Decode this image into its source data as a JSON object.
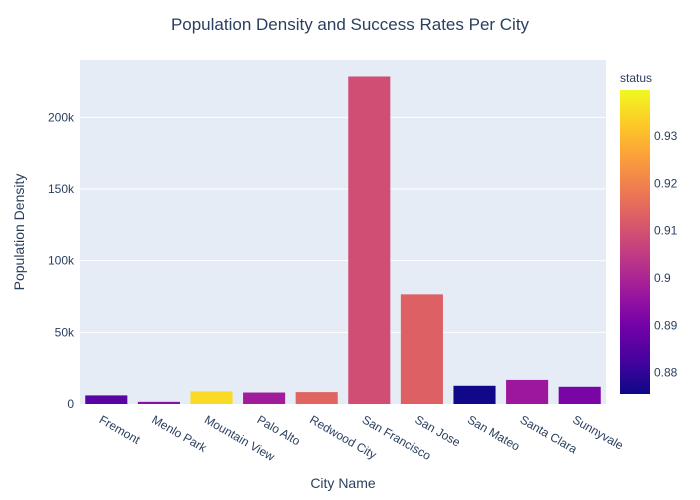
{
  "chart_data": {
    "type": "bar",
    "title": "Population Density and Success Rates Per City",
    "xlabel": "City Name",
    "ylabel": "Population Density",
    "ylim": [
      0,
      240000
    ],
    "yticks": [
      0,
      50000,
      100000,
      150000,
      200000
    ],
    "ytick_labels": [
      "0",
      "50k",
      "100k",
      "150k",
      "200k"
    ],
    "categories": [
      "Fremont",
      "Menlo Park",
      "Mountain View",
      "Palo Alto",
      "Redwood City",
      "San Francisco",
      "San Jose",
      "San Mateo",
      "Santa Clara",
      "Sunnyvale"
    ],
    "values": [
      6000,
      1500,
      8800,
      8000,
      8300,
      228500,
      76500,
      12700,
      16800,
      12000
    ],
    "status": [
      0.886,
      0.894,
      0.935,
      0.898,
      0.914,
      0.909,
      0.913,
      0.876,
      0.897,
      0.891
    ],
    "grid": true,
    "colorbar": {
      "title": "status",
      "range": [
        0.8755,
        0.9397
      ],
      "ticks": [
        0.88,
        0.89,
        0.9,
        0.91,
        0.92,
        0.93
      ],
      "tick_labels": [
        "0.88",
        "0.89",
        "0.9",
        "0.91",
        "0.92",
        "0.93"
      ],
      "colorscale": [
        "#0d0887",
        "#46039f",
        "#7201a8",
        "#9c179e",
        "#bd3786",
        "#d8576b",
        "#ed7953",
        "#fb9f3a",
        "#fdca26",
        "#f0f921"
      ]
    },
    "colors": {
      "plot_bg": "#e5ecf6",
      "grid": "#ffffff",
      "text": "#2a3f5f"
    }
  }
}
